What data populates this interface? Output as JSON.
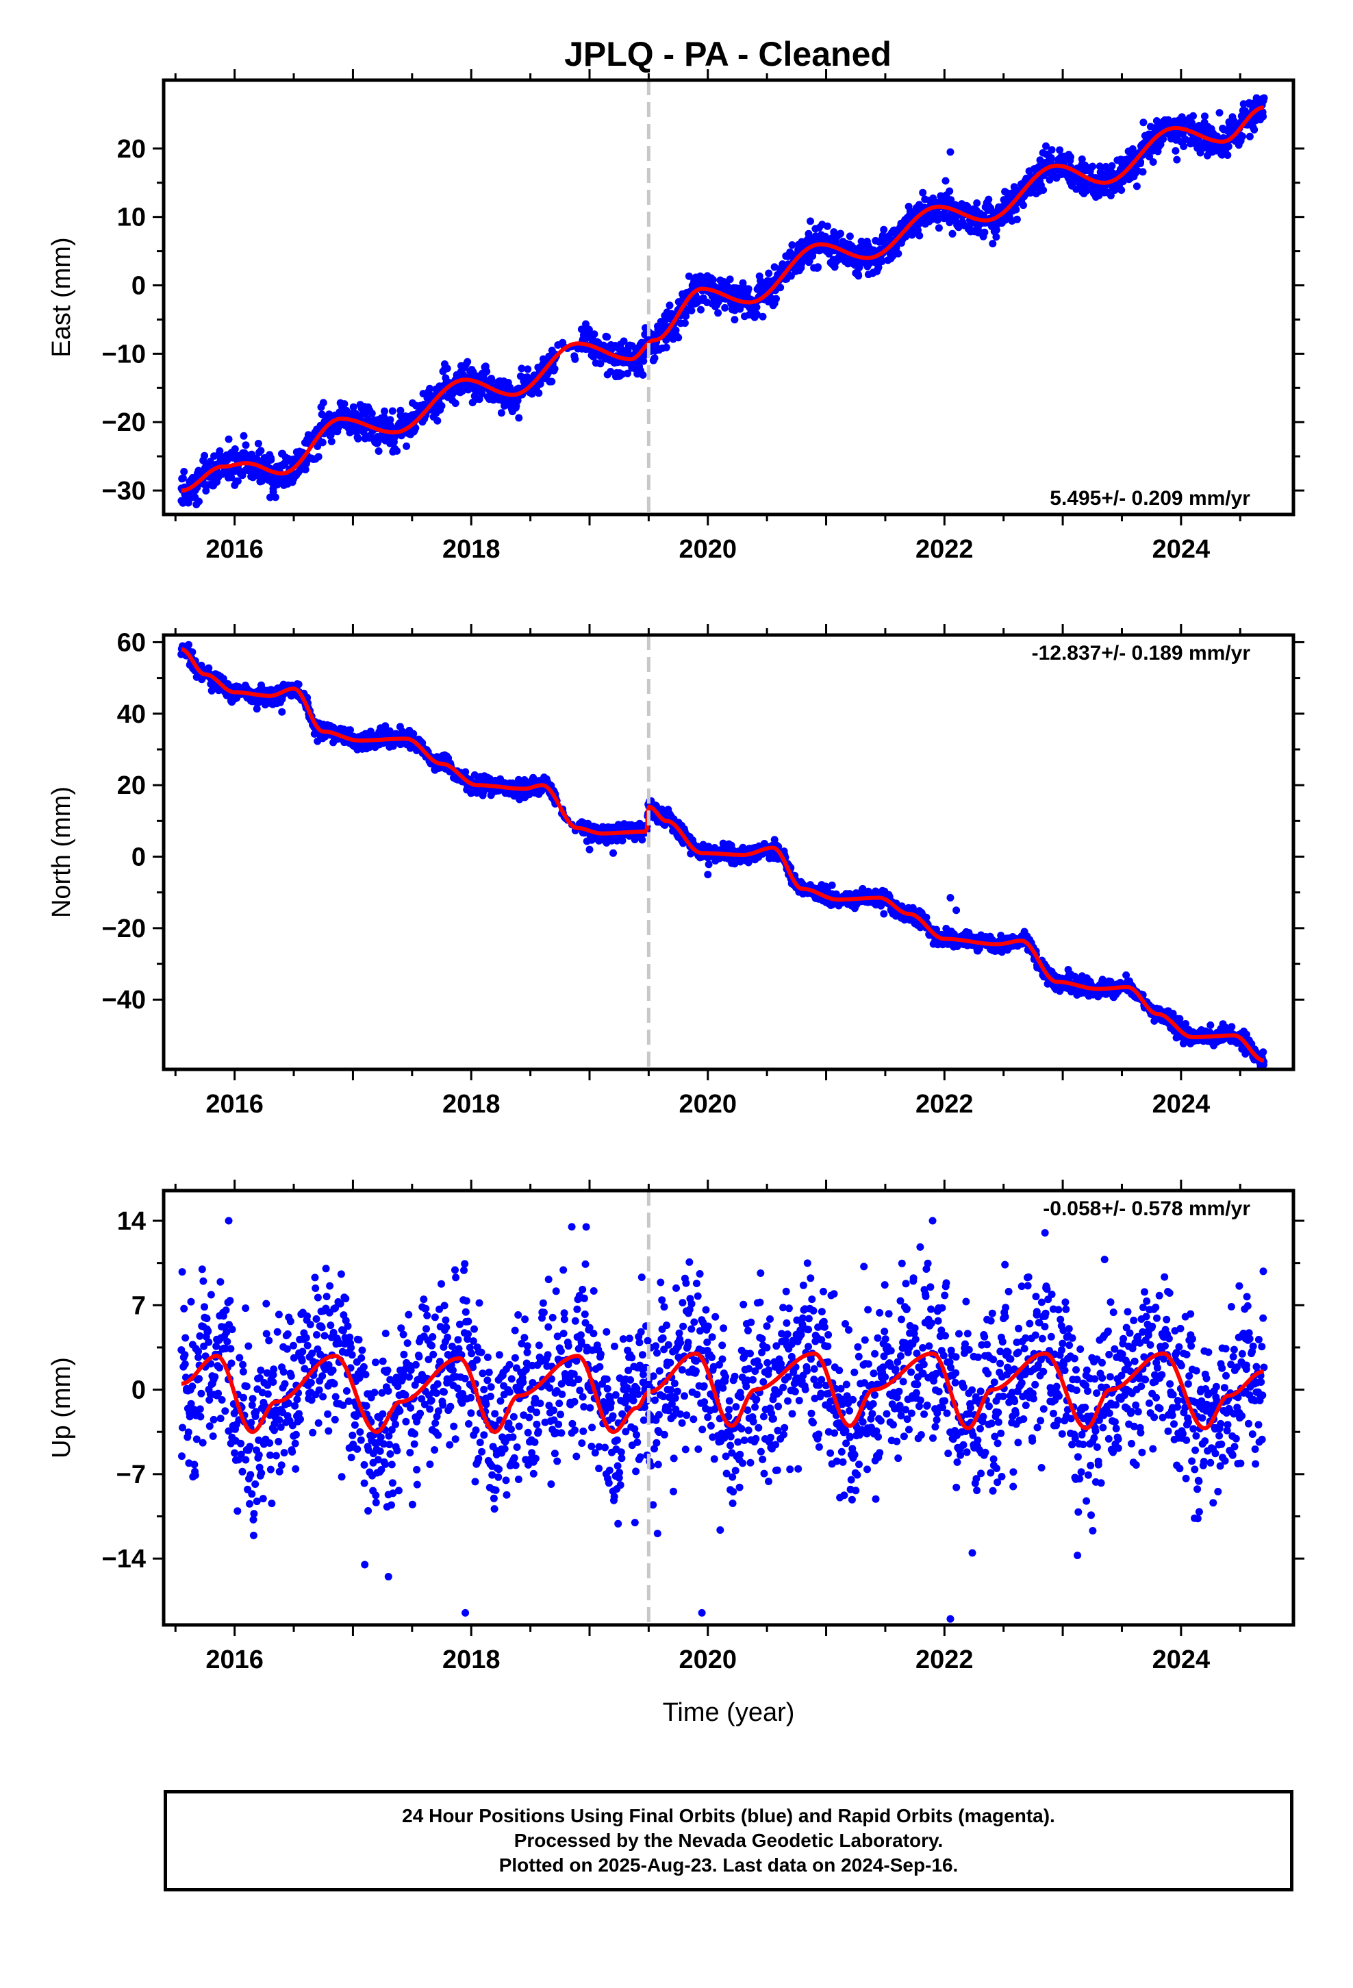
{
  "title": "JPLQ  - PA - Cleaned",
  "colors": {
    "points": "#0000ff",
    "model": "#ff0000",
    "event_line": "#c8c8c8",
    "frame": "#000000"
  },
  "chart_data": [
    {
      "type": "scatter",
      "panel": "east",
      "ylabel": "East (mm)",
      "xlabel": "",
      "xlim": [
        2015.4,
        2024.95
      ],
      "ylim": [
        -33.5,
        30
      ],
      "xticks": [
        2016,
        2018,
        2020,
        2022,
        2024
      ],
      "xtick_labels": [
        "2016",
        "2018",
        "2020",
        "2022",
        "2024"
      ],
      "yticks": [
        -30,
        -20,
        -10,
        0,
        10,
        20
      ],
      "ytick_labels": [
        "−30",
        "−20",
        "−10",
        "0",
        "10",
        "20"
      ],
      "annotation": "5.495+/- 0.209 mm/yr",
      "annotation_position": "bottom-right",
      "event_line_x": 2019.5,
      "data_range": [
        2015.55,
        2024.7
      ],
      "model": {
        "x": [
          2015.55,
          2015.9,
          2016.1,
          2016.4,
          2016.9,
          2017.35,
          2017.95,
          2018.35,
          2018.9,
          2019.35,
          2019.55,
          2019.95,
          2020.35,
          2020.95,
          2021.35,
          2021.95,
          2022.35,
          2022.95,
          2023.35,
          2023.95,
          2024.35,
          2024.7
        ],
        "y": [
          -30,
          -26.5,
          -26,
          -27.5,
          -19.5,
          -21.5,
          -13.8,
          -16,
          -8.5,
          -10.8,
          -8,
          -0.5,
          -2.5,
          6,
          4,
          11.5,
          9.5,
          17.5,
          15,
          23,
          21,
          26
        ]
      },
      "noise": {
        "scatter": 1.1,
        "spread": 2.2
      },
      "outliers": {
        "x": [
          2022.05,
          2015.55,
          2016.3,
          2015.95
        ],
        "y": [
          19.5,
          -31.5,
          -31,
          -22.5
        ]
      },
      "point_count": 2400
    },
    {
      "type": "scatter",
      "panel": "north",
      "ylabel": "North (mm)",
      "xlabel": "",
      "xlim": [
        2015.4,
        2024.95
      ],
      "ylim": [
        -59.5,
        62
      ],
      "xticks": [
        2016,
        2018,
        2020,
        2022,
        2024
      ],
      "xtick_labels": [
        "2016",
        "2018",
        "2020",
        "2022",
        "2024"
      ],
      "yticks": [
        -40,
        -20,
        0,
        20,
        40,
        60
      ],
      "ytick_labels": [
        "−40",
        "−20",
        "0",
        "20",
        "40",
        "60"
      ],
      "annotation": "-12.837+/- 0.189 mm/yr",
      "annotation_position": "top-right",
      "event_line_x": 2019.5,
      "data_range": [
        2015.55,
        2024.7
      ],
      "model": {
        "x": [
          2015.55,
          2015.75,
          2016.0,
          2016.3,
          2016.5,
          2016.75,
          2017.05,
          2017.45,
          2017.75,
          2018.05,
          2018.45,
          2018.6,
          2018.9,
          2019.1,
          2019.48,
          2019.5,
          2019.65,
          2019.95,
          2020.3,
          2020.55,
          2020.8,
          2021.1,
          2021.45,
          2021.7,
          2022.0,
          2022.45,
          2022.65,
          2022.95,
          2023.3,
          2023.55,
          2023.8,
          2024.1,
          2024.45,
          2024.7
        ],
        "y": [
          58,
          51,
          46,
          45,
          47,
          35,
          32.5,
          33,
          26,
          20,
          19,
          20,
          8,
          6.5,
          7,
          14,
          10,
          1,
          0.5,
          2.5,
          -9,
          -12,
          -11.5,
          -16,
          -23,
          -24.5,
          -23.5,
          -35,
          -37,
          -36.5,
          -44,
          -50.5,
          -50,
          -57
        ]
      },
      "noise": {
        "scatter": 1.0,
        "spread": 1.8
      },
      "outliers": {
        "x": [
          2022.05,
          2022.1,
          2021.05,
          2020.0,
          2019.0,
          2019.2,
          2016.4
        ],
        "y": [
          -11.5,
          -15,
          -8,
          -5,
          2,
          1,
          40.5
        ]
      },
      "point_count": 2400
    },
    {
      "type": "scatter",
      "panel": "up",
      "ylabel": "Up (mm)",
      "xlabel": "Time (year)",
      "xlim": [
        2015.4,
        2024.95
      ],
      "ylim": [
        -19.5,
        16.5
      ],
      "xticks": [
        2016,
        2018,
        2020,
        2022,
        2024
      ],
      "xtick_labels": [
        "2016",
        "2018",
        "2020",
        "2022",
        "2024"
      ],
      "yticks": [
        -14,
        -7,
        0,
        7,
        14
      ],
      "ytick_labels": [
        "−14",
        "−7",
        "0",
        "7",
        "14"
      ],
      "annotation": "-0.058+/- 0.578 mm/yr",
      "annotation_position": "top-right",
      "event_line_x": 2019.5,
      "data_range": [
        2015.55,
        2024.7
      ],
      "model": {
        "x": [
          2015.55,
          2015.85,
          2016.15,
          2016.35,
          2016.85,
          2017.2,
          2017.4,
          2017.9,
          2018.2,
          2018.4,
          2018.9,
          2019.2,
          2019.4,
          2019.5,
          2019.9,
          2020.2,
          2020.4,
          2020.9,
          2021.2,
          2021.4,
          2021.9,
          2022.2,
          2022.4,
          2022.85,
          2023.2,
          2023.4,
          2023.85,
          2024.2,
          2024.4,
          2024.7
        ],
        "y": [
          0.5,
          2.8,
          -3.5,
          -1,
          2.8,
          -3.5,
          -1,
          2.6,
          -3.5,
          -0.5,
          2.8,
          -3.5,
          -1.5,
          -0.2,
          3,
          -3,
          0,
          3,
          -3,
          0,
          3,
          -3.2,
          0,
          3,
          -3.2,
          0,
          3,
          -3.2,
          -0.5,
          1.5
        ]
      },
      "noise": {
        "scatter": 3.0,
        "spread": 5.0
      },
      "outliers": {
        "x": [
          2017.95,
          2022.05,
          2019.95,
          2015.95,
          2018.85,
          2021.9,
          2022.85,
          2017.3,
          2017.1
        ],
        "y": [
          -18.5,
          -19,
          -18.5,
          14,
          13.5,
          14,
          13,
          -15.5,
          -14.5
        ]
      },
      "point_count": 2400
    }
  ],
  "footer": {
    "line1": "24 Hour Positions Using Final Orbits (blue) and Rapid Orbits (magenta).",
    "line2": "Processed by the Nevada Geodetic Laboratory.",
    "line3": "Plotted on 2025-Aug-23. Last data on 2024-Sep-16."
  }
}
